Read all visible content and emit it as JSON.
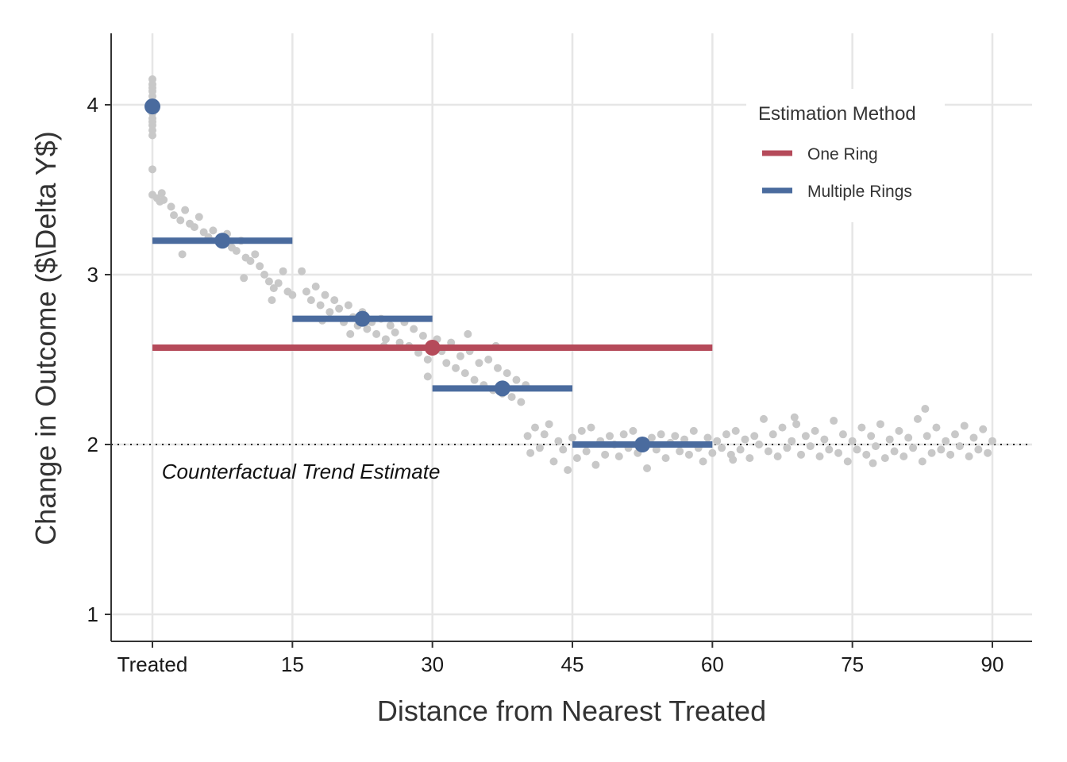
{
  "chart_data": {
    "type": "scatter",
    "xlabel": "Distance from Nearest Treated",
    "ylabel": "Change in Outcome ($\\Delta Y$)",
    "xlim": [
      -3,
      90
    ],
    "ylim": [
      0.85,
      4.4
    ],
    "x_ticks": [
      {
        "value": 0,
        "label": "Treated"
      },
      {
        "value": 15,
        "label": "15"
      },
      {
        "value": 30,
        "label": "30"
      },
      {
        "value": 45,
        "label": "45"
      },
      {
        "value": 60,
        "label": "60"
      },
      {
        "value": 75,
        "label": "75"
      },
      {
        "value": 90,
        "label": "90"
      }
    ],
    "y_ticks": [
      {
        "value": 1,
        "label": "1"
      },
      {
        "value": 2,
        "label": "2"
      },
      {
        "value": 3,
        "label": "3"
      },
      {
        "value": 4,
        "label": "4"
      }
    ],
    "grid": true,
    "reference_line": {
      "y": 2,
      "style": "dotted"
    },
    "annotation": {
      "text": "Counterfactual Trend Estimate",
      "x": 1,
      "y": 1.8
    },
    "legend": {
      "title": "Estimation Method",
      "placement": "top-right",
      "entries": [
        {
          "label": "One Ring",
          "color": "#b54a5a"
        },
        {
          "label": "Multiple Rings",
          "color": "#4a6b9e"
        }
      ]
    },
    "scatter_color": "#c8c8c8",
    "scatter_points": [
      [
        0,
        4.15
      ],
      [
        0,
        4.12
      ],
      [
        0,
        4.1
      ],
      [
        0,
        4.08
      ],
      [
        0,
        4.05
      ],
      [
        0,
        4.02
      ],
      [
        0,
        3.98
      ],
      [
        0,
        3.95
      ],
      [
        0,
        3.92
      ],
      [
        0,
        3.9
      ],
      [
        0,
        3.88
      ],
      [
        0,
        3.85
      ],
      [
        0,
        3.82
      ],
      [
        0,
        3.62
      ],
      [
        0,
        3.47
      ],
      [
        0.5,
        3.45
      ],
      [
        1,
        3.48
      ],
      [
        1.2,
        3.44
      ],
      [
        0.8,
        3.43
      ],
      [
        2,
        3.4
      ],
      [
        2.3,
        3.35
      ],
      [
        3,
        3.32
      ],
      [
        3.5,
        3.38
      ],
      [
        4,
        3.3
      ],
      [
        4.5,
        3.28
      ],
      [
        5,
        3.34
      ],
      [
        5.5,
        3.25
      ],
      [
        6,
        3.22
      ],
      [
        6.5,
        3.26
      ],
      [
        7,
        3.2
      ],
      [
        7.5,
        3.18
      ],
      [
        8,
        3.24
      ],
      [
        8.5,
        3.16
      ],
      [
        9,
        3.14
      ],
      [
        9.5,
        3.2
      ],
      [
        10,
        3.1
      ],
      [
        10.5,
        3.08
      ],
      [
        11,
        3.12
      ],
      [
        11.5,
        3.05
      ],
      [
        12,
        3.0
      ],
      [
        12.5,
        2.96
      ],
      [
        13,
        2.92
      ],
      [
        13.5,
        2.95
      ],
      [
        14,
        3.02
      ],
      [
        14.5,
        2.9
      ],
      [
        15,
        2.88
      ],
      [
        3.2,
        3.12
      ],
      [
        9.8,
        2.98
      ],
      [
        12.8,
        2.85
      ],
      [
        16,
        3.02
      ],
      [
        16.5,
        2.9
      ],
      [
        17,
        2.85
      ],
      [
        17.5,
        2.93
      ],
      [
        18,
        2.82
      ],
      [
        18.5,
        2.88
      ],
      [
        19,
        2.78
      ],
      [
        19.5,
        2.85
      ],
      [
        20,
        2.8
      ],
      [
        20.5,
        2.72
      ],
      [
        21,
        2.82
      ],
      [
        21.5,
        2.75
      ],
      [
        22,
        2.7
      ],
      [
        22.5,
        2.78
      ],
      [
        23,
        2.68
      ],
      [
        23.5,
        2.72
      ],
      [
        24,
        2.65
      ],
      [
        24.5,
        2.74
      ],
      [
        25,
        2.62
      ],
      [
        25.5,
        2.7
      ],
      [
        26,
        2.66
      ],
      [
        26.5,
        2.6
      ],
      [
        27,
        2.72
      ],
      [
        27.5,
        2.58
      ],
      [
        28,
        2.68
      ],
      [
        28.5,
        2.54
      ],
      [
        29,
        2.64
      ],
      [
        29.5,
        2.5
      ],
      [
        30,
        2.56
      ],
      [
        21.2,
        2.65
      ],
      [
        24.8,
        2.58
      ],
      [
        18.2,
        2.73
      ],
      [
        30.5,
        2.62
      ],
      [
        31,
        2.55
      ],
      [
        31.5,
        2.48
      ],
      [
        32,
        2.6
      ],
      [
        32.5,
        2.45
      ],
      [
        33,
        2.52
      ],
      [
        33.5,
        2.42
      ],
      [
        34,
        2.55
      ],
      [
        34.5,
        2.38
      ],
      [
        35,
        2.48
      ],
      [
        35.5,
        2.35
      ],
      [
        36,
        2.5
      ],
      [
        36.5,
        2.32
      ],
      [
        37,
        2.45
      ],
      [
        37.5,
        2.3
      ],
      [
        38,
        2.42
      ],
      [
        38.5,
        2.28
      ],
      [
        39,
        2.38
      ],
      [
        39.5,
        2.25
      ],
      [
        40,
        2.35
      ],
      [
        29.5,
        2.4
      ],
      [
        33.8,
        2.65
      ],
      [
        36.8,
        2.58
      ],
      [
        40.2,
        2.05
      ],
      [
        40.5,
        1.95
      ],
      [
        41,
        2.1
      ],
      [
        41.5,
        1.98
      ],
      [
        42,
        2.06
      ],
      [
        42.5,
        2.12
      ],
      [
        43,
        1.9
      ],
      [
        43.5,
        2.02
      ],
      [
        44,
        1.97
      ],
      [
        44.5,
        1.85
      ],
      [
        45,
        2.04
      ],
      [
        45.5,
        1.92
      ],
      [
        46,
        2.08
      ],
      [
        46.5,
        1.96
      ],
      [
        47,
        2.1
      ],
      [
        47.5,
        1.88
      ],
      [
        48,
        2.02
      ],
      [
        48.5,
        1.94
      ],
      [
        49,
        2.05
      ],
      [
        49.5,
        2.0
      ],
      [
        50,
        1.93
      ],
      [
        50.5,
        2.06
      ],
      [
        51,
        1.98
      ],
      [
        51.5,
        2.08
      ],
      [
        52,
        1.95
      ],
      [
        52.5,
        2.02
      ],
      [
        53,
        1.86
      ],
      [
        53.5,
        2.04
      ],
      [
        54,
        1.97
      ],
      [
        54.5,
        2.06
      ],
      [
        55,
        1.92
      ],
      [
        55.5,
        2.01
      ],
      [
        56,
        2.05
      ],
      [
        56.5,
        1.96
      ],
      [
        57,
        2.03
      ],
      [
        57.5,
        1.94
      ],
      [
        58,
        2.08
      ],
      [
        58.5,
        1.98
      ],
      [
        59,
        1.9
      ],
      [
        59.5,
        2.04
      ],
      [
        60,
        1.95
      ],
      [
        60.5,
        2.02
      ],
      [
        61,
        1.98
      ],
      [
        61.5,
        2.06
      ],
      [
        62,
        1.94
      ],
      [
        62.5,
        2.08
      ],
      [
        63,
        1.97
      ],
      [
        63.5,
        2.03
      ],
      [
        64,
        1.92
      ],
      [
        64.5,
        2.05
      ],
      [
        65,
        2.0
      ],
      [
        65.5,
        2.15
      ],
      [
        66,
        1.96
      ],
      [
        66.5,
        2.06
      ],
      [
        67,
        1.93
      ],
      [
        67.5,
        2.1
      ],
      [
        68,
        1.98
      ],
      [
        68.5,
        2.02
      ],
      [
        69,
        2.12
      ],
      [
        69.5,
        1.94
      ],
      [
        70,
        2.05
      ],
      [
        70.5,
        1.99
      ],
      [
        71,
        2.08
      ],
      [
        71.5,
        1.93
      ],
      [
        72,
        2.03
      ],
      [
        72.5,
        1.97
      ],
      [
        73,
        2.14
      ],
      [
        73.5,
        1.95
      ],
      [
        74,
        2.06
      ],
      [
        74.5,
        1.9
      ],
      [
        75,
        2.02
      ],
      [
        75.5,
        1.97
      ],
      [
        76,
        2.1
      ],
      [
        76.5,
        1.94
      ],
      [
        77,
        2.05
      ],
      [
        77.5,
        1.99
      ],
      [
        78,
        2.12
      ],
      [
        78.5,
        1.92
      ],
      [
        79,
        2.03
      ],
      [
        79.5,
        1.96
      ],
      [
        80,
        2.08
      ],
      [
        80.5,
        1.93
      ],
      [
        81,
        2.04
      ],
      [
        81.5,
        1.98
      ],
      [
        82,
        2.15
      ],
      [
        82.5,
        1.9
      ],
      [
        83,
        2.05
      ],
      [
        83.5,
        1.95
      ],
      [
        84,
        2.1
      ],
      [
        84.5,
        1.97
      ],
      [
        85,
        2.02
      ],
      [
        85.5,
        1.94
      ],
      [
        86,
        2.06
      ],
      [
        86.5,
        1.99
      ],
      [
        87,
        2.11
      ],
      [
        87.5,
        1.93
      ],
      [
        88,
        2.04
      ],
      [
        88.5,
        1.97
      ],
      [
        89,
        2.09
      ],
      [
        89.5,
        1.95
      ],
      [
        90,
        2.02
      ],
      [
        62.2,
        1.91
      ],
      [
        68.8,
        2.16
      ],
      [
        77.2,
        1.89
      ],
      [
        82.8,
        2.21
      ]
    ],
    "series": [
      {
        "name": "One Ring",
        "color": "#b54a5a",
        "segments": [
          {
            "x_start": 0,
            "x_end": 60,
            "y": 2.57,
            "point_x": 30
          }
        ]
      },
      {
        "name": "Multiple Rings",
        "color": "#4a6b9e",
        "segments": [
          {
            "x_start": 0,
            "x_end": 0,
            "y": 3.99,
            "point_x": 0
          },
          {
            "x_start": 0,
            "x_end": 15,
            "y": 3.2,
            "point_x": 7.5
          },
          {
            "x_start": 15,
            "x_end": 30,
            "y": 2.74,
            "point_x": 22.5
          },
          {
            "x_start": 30,
            "x_end": 45,
            "y": 2.33,
            "point_x": 37.5
          },
          {
            "x_start": 45,
            "x_end": 60,
            "y": 2.0,
            "point_x": 52.5
          }
        ]
      }
    ]
  }
}
